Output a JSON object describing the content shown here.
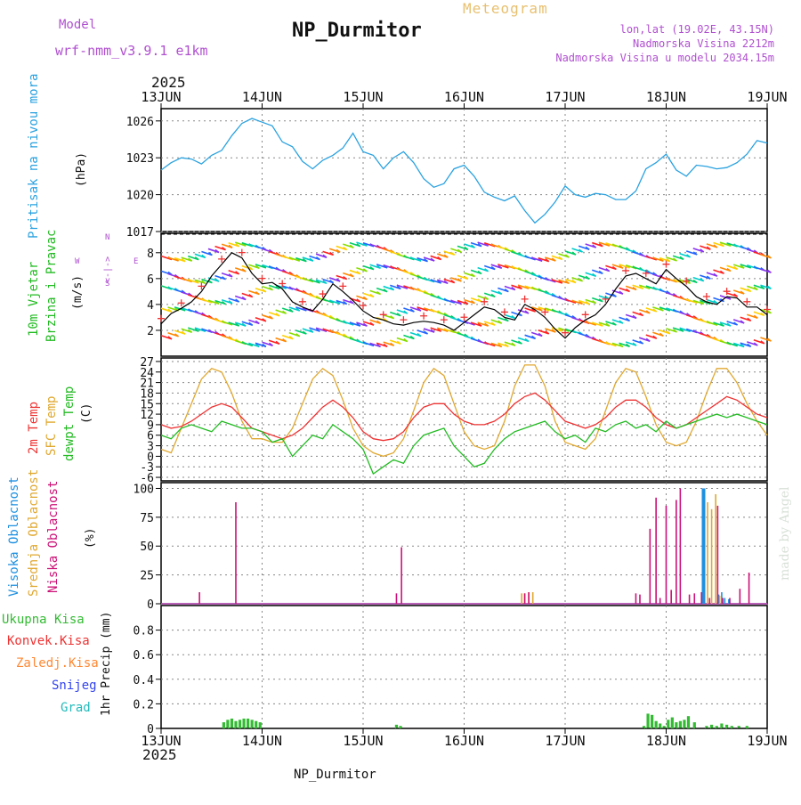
{
  "header": {
    "model_label": "Model",
    "model_name": "wrf-nmm_v3.9.1 e1km",
    "title": "NP_Durmitor",
    "subtitle": "Meteogram",
    "lonlat": "lon,lat (19.02E, 43.15N)",
    "altitude": "Nadmorska Visina 2212m",
    "model_altitude": "Nadmorska Visina u modelu 2034.15m",
    "year": "2025",
    "footer_label": "NP_Durmitor",
    "signature": "made by Angel"
  },
  "colors": {
    "pressure": "#2aa2e0",
    "temp2m": "#ee3333",
    "sfc": "#e0a830",
    "dew": "#22bb22",
    "cloud_high": "#1e90e0",
    "cloud_mid": "#e0a830",
    "cloud_low": "#cc1177",
    "precip_total": "#33bb33",
    "text_model": "#b050d0",
    "text_meteogram": "#e8c070",
    "rain_conv": "#ee3333",
    "rain_frozen": "#ff8833",
    "snow": "#3344ee",
    "hail": "#22bbbb"
  },
  "x_axis": {
    "ticks": [
      "13JUN",
      "14JUN",
      "15JUN",
      "16JUN",
      "17JUN",
      "18JUN",
      "19JUN"
    ]
  },
  "panels": {
    "pressure": {
      "label": "Pritisak na nivou mora",
      "unit": "(hPa)"
    },
    "wind": {
      "label1": "10m Vjetar",
      "label2": "Brzina i Pravac",
      "unit": "(m/s)",
      "compass_w": "W",
      "compass_e": "E",
      "compass_n": "N",
      "compass_s": "S",
      "compass_arrows": "<-|->"
    },
    "temp": {
      "label_2m": "2m Temp",
      "label_sfc": "SFC Temp",
      "label_dew": "dewpt Temp",
      "unit": "(C)"
    },
    "cloud": {
      "label_high": "Visoka Oblacnost",
      "label_mid": "Srednja Oblacnost",
      "label_low": "Niska Oblacnost",
      "unit": "(%)"
    },
    "precip": {
      "label_total": "Ukupna Kisa",
      "label_conv": "Konvek.Kisa",
      "label_frozen": "Zaledj.Kisa",
      "label_snow": "Snijeg",
      "label_hail": "Grad",
      "unit": "1hr Precip (mm)"
    }
  },
  "chart_data": [
    {
      "type": "line",
      "ylabel": "Pritisak na nivou mora (hPa)",
      "x_unit": "days since 13JUN 00Z",
      "ylim": [
        1017,
        1027
      ],
      "yticks": [
        1017,
        1020,
        1023,
        1026
      ],
      "series": [
        {
          "name": "pressure",
          "x": [
            0,
            0.1,
            0.2,
            0.3,
            0.4,
            0.5,
            0.6,
            0.7,
            0.8,
            0.9,
            1.0,
            1.1,
            1.2,
            1.3,
            1.4,
            1.5,
            1.6,
            1.7,
            1.8,
            1.9,
            2.0,
            2.1,
            2.2,
            2.3,
            2.4,
            2.5,
            2.6,
            2.7,
            2.8,
            2.9,
            3.0,
            3.1,
            3.2,
            3.3,
            3.4,
            3.5,
            3.6,
            3.7,
            3.8,
            3.9,
            4.0,
            4.1,
            4.2,
            4.3,
            4.4,
            4.5,
            4.6,
            4.7,
            4.8,
            4.9,
            5.0,
            5.1,
            5.2,
            5.3,
            5.4,
            5.5,
            5.6,
            5.7,
            5.8,
            5.9,
            6.0
          ],
          "values": [
            1022,
            1022.6,
            1023,
            1022.9,
            1022.5,
            1023.2,
            1023.6,
            1024.8,
            1025.8,
            1026.2,
            1025.9,
            1025.6,
            1024.3,
            1023.9,
            1022.7,
            1022.1,
            1022.8,
            1023.2,
            1023.8,
            1025.0,
            1023.5,
            1023.2,
            1022.1,
            1023.0,
            1023.5,
            1022.6,
            1021.3,
            1020.6,
            1020.9,
            1022.1,
            1022.4,
            1021.5,
            1020.2,
            1019.8,
            1019.5,
            1019.9,
            1018.7,
            1017.7,
            1018.4,
            1019.4,
            1020.7,
            1020.0,
            1019.8,
            1020.1,
            1020.0,
            1019.6,
            1019.6,
            1020.3,
            1022.1,
            1022.6,
            1023.3,
            1022.0,
            1021.5,
            1022.4,
            1022.3,
            1022.1,
            1022.2,
            1022.6,
            1023.3,
            1024.4,
            1024.2
          ]
        }
      ]
    },
    {
      "type": "line",
      "ylabel": "10m Vjetar Brzina i Pravac (m/s)",
      "x_unit": "days since 13JUN 00Z",
      "ylim": [
        0,
        9.5
      ],
      "yticks": [
        2,
        4,
        6,
        8
      ],
      "series": [
        {
          "name": "wind speed",
          "x": [
            0,
            0.1,
            0.2,
            0.3,
            0.4,
            0.5,
            0.6,
            0.7,
            0.8,
            0.9,
            1.0,
            1.1,
            1.2,
            1.3,
            1.4,
            1.5,
            1.6,
            1.7,
            1.8,
            1.9,
            2.0,
            2.1,
            2.2,
            2.3,
            2.4,
            2.5,
            2.6,
            2.7,
            2.8,
            2.9,
            3.0,
            3.1,
            3.2,
            3.3,
            3.4,
            3.5,
            3.6,
            3.7,
            3.8,
            3.9,
            4.0,
            4.1,
            4.2,
            4.3,
            4.4,
            4.5,
            4.6,
            4.7,
            4.8,
            4.9,
            5.0,
            5.1,
            5.2,
            5.3,
            5.4,
            5.5,
            5.6,
            5.7,
            5.8,
            5.9,
            6.0
          ],
          "values": [
            2.5,
            3.3,
            3.7,
            4.2,
            5.0,
            6.2,
            7.1,
            8.0,
            7.6,
            6.4,
            5.6,
            5.7,
            5.2,
            4.2,
            3.8,
            3.5,
            4.4,
            5.6,
            5.0,
            4.3,
            3.5,
            3.0,
            2.8,
            2.5,
            2.4,
            2.6,
            2.7,
            2.6,
            2.4,
            2.0,
            2.6,
            3.2,
            3.8,
            3.6,
            3.0,
            2.8,
            4.0,
            3.6,
            3.0,
            2.1,
            1.4,
            2.2,
            2.8,
            3.2,
            4.0,
            5.2,
            6.2,
            6.4,
            6.0,
            5.6,
            6.7,
            6.0,
            5.4,
            4.6,
            4.2,
            4.0,
            4.6,
            4.5,
            3.8,
            3.8,
            3.2
          ]
        }
      ]
    },
    {
      "type": "line",
      "ylabel": "Temperature (C)",
      "x_unit": "days since 13JUN 00Z",
      "ylim": [
        -7,
        28
      ],
      "yticks": [
        -6,
        -3,
        0,
        3,
        6,
        9,
        12,
        15,
        18,
        21,
        24,
        27
      ],
      "series": [
        {
          "name": "2m Temp",
          "x": [
            0,
            0.1,
            0.2,
            0.3,
            0.4,
            0.5,
            0.6,
            0.7,
            0.8,
            0.9,
            1.0,
            1.1,
            1.2,
            1.3,
            1.4,
            1.5,
            1.6,
            1.7,
            1.8,
            1.9,
            2.0,
            2.1,
            2.2,
            2.3,
            2.4,
            2.5,
            2.6,
            2.7,
            2.8,
            2.9,
            3.0,
            3.1,
            3.2,
            3.3,
            3.4,
            3.5,
            3.6,
            3.7,
            3.8,
            3.9,
            4.0,
            4.1,
            4.2,
            4.3,
            4.4,
            4.5,
            4.6,
            4.7,
            4.8,
            4.9,
            5.0,
            5.1,
            5.2,
            5.3,
            5.4,
            5.5,
            5.6,
            5.7,
            5.8,
            5.9,
            6.0
          ],
          "values": [
            9,
            8,
            8.5,
            10,
            12,
            14,
            15,
            14,
            11,
            8,
            7,
            6,
            5,
            6,
            8,
            11,
            14,
            16,
            14,
            11,
            7,
            5,
            4.5,
            5,
            7,
            11,
            14,
            15,
            15,
            12,
            10,
            9,
            9,
            10,
            12,
            15,
            17,
            18,
            16,
            13,
            10,
            9,
            8,
            9,
            11,
            14,
            16,
            16,
            14,
            11,
            9,
            8,
            9,
            11,
            13,
            15,
            17,
            16,
            14,
            12,
            11
          ]
        },
        {
          "name": "SFC Temp",
          "x": [
            0,
            0.1,
            0.2,
            0.3,
            0.4,
            0.5,
            0.6,
            0.7,
            0.8,
            0.9,
            1.0,
            1.1,
            1.2,
            1.3,
            1.4,
            1.5,
            1.6,
            1.7,
            1.8,
            1.9,
            2.0,
            2.1,
            2.2,
            2.3,
            2.4,
            2.5,
            2.6,
            2.7,
            2.8,
            2.9,
            3.0,
            3.1,
            3.2,
            3.3,
            3.4,
            3.5,
            3.6,
            3.7,
            3.8,
            3.9,
            4.0,
            4.1,
            4.2,
            4.3,
            4.4,
            4.5,
            4.6,
            4.7,
            4.8,
            4.9,
            5.0,
            5.1,
            5.2,
            5.3,
            5.4,
            5.5,
            5.6,
            5.7,
            5.8,
            5.9,
            6.0
          ],
          "values": [
            2,
            1,
            8,
            15,
            22,
            25,
            24,
            18,
            10,
            5,
            5,
            4,
            4,
            8,
            15,
            22,
            25,
            23,
            16,
            8,
            3,
            1,
            0,
            1,
            5,
            13,
            21,
            25,
            23,
            15,
            7,
            3,
            2,
            3,
            10,
            20,
            26,
            26,
            20,
            10,
            4,
            3,
            2,
            5,
            13,
            21,
            25,
            24,
            17,
            9,
            4,
            3,
            4,
            10,
            18,
            25,
            25,
            21,
            15,
            10,
            6
          ]
        },
        {
          "name": "dewpt Temp",
          "x": [
            0,
            0.1,
            0.2,
            0.3,
            0.4,
            0.5,
            0.6,
            0.7,
            0.8,
            0.9,
            1.0,
            1.1,
            1.2,
            1.3,
            1.4,
            1.5,
            1.6,
            1.7,
            1.8,
            1.9,
            2.0,
            2.1,
            2.2,
            2.3,
            2.4,
            2.5,
            2.6,
            2.7,
            2.8,
            2.9,
            3.0,
            3.1,
            3.2,
            3.3,
            3.4,
            3.5,
            3.6,
            3.7,
            3.8,
            3.9,
            4.0,
            4.1,
            4.2,
            4.3,
            4.4,
            4.5,
            4.6,
            4.7,
            4.8,
            4.9,
            5.0,
            5.1,
            5.2,
            5.3,
            5.4,
            5.5,
            5.6,
            5.7,
            5.8,
            5.9,
            6.0
          ],
          "values": [
            6,
            5,
            8,
            9,
            8,
            7,
            10,
            9,
            8,
            8,
            7,
            4,
            5,
            0,
            3,
            6,
            5,
            9,
            7,
            5,
            2,
            -5,
            -3,
            -1,
            -2,
            3,
            6,
            7,
            8,
            3,
            0,
            -3,
            -2,
            2,
            5,
            7,
            8,
            9,
            10,
            7,
            5,
            6,
            4,
            8,
            7,
            9,
            10,
            8,
            9,
            7,
            10,
            8,
            9,
            10,
            11,
            12,
            11,
            12,
            11,
            10,
            9
          ]
        }
      ]
    },
    {
      "type": "bar",
      "ylabel": "Oblacnost (%)",
      "x_unit": "days since 13JUN 00Z",
      "ylim": [
        0,
        105
      ],
      "yticks": [
        0,
        25,
        50,
        75,
        100
      ],
      "series": [
        {
          "name": "Visoka Oblacnost",
          "x": [
            5.37,
            5.52,
            5.55,
            5.58,
            5.62
          ],
          "values": [
            100,
            8,
            10,
            5,
            4
          ]
        },
        {
          "name": "Srednja Oblacnost",
          "x": [
            3.57,
            3.6,
            3.64,
            3.68,
            5.41,
            5.45,
            5.49,
            5.53
          ],
          "values": [
            9,
            9,
            10,
            10,
            88,
            82,
            95,
            7
          ]
        },
        {
          "name": "Niska Oblacnost",
          "x": [
            0.38,
            0.74,
            2.33,
            2.38,
            3.6,
            3.64,
            4.7,
            4.74,
            4.84,
            4.9,
            4.94,
            5.0,
            5.05,
            5.1,
            5.14,
            5.23,
            5.28,
            5.35,
            5.43,
            5.51,
            5.56,
            5.63,
            5.73,
            5.82
          ],
          "values": [
            10,
            88,
            9,
            49,
            9,
            10,
            9,
            8,
            65,
            92,
            5,
            85,
            12,
            90,
            100,
            8,
            9,
            10,
            5,
            85,
            5,
            5,
            13,
            27
          ]
        }
      ]
    },
    {
      "type": "bar",
      "ylabel": "1hr Precip (mm)",
      "x_unit": "days since 13JUN 00Z",
      "ylim": [
        0,
        1.0
      ],
      "yticks": [
        0,
        0.2,
        0.4,
        0.6,
        0.8
      ],
      "series": [
        {
          "name": "Ukupna Kisa",
          "x": [
            0.62,
            0.66,
            0.7,
            0.74,
            0.78,
            0.82,
            0.86,
            0.9,
            0.94,
            0.98,
            2.33,
            2.37,
            4.78,
            4.82,
            4.86,
            4.9,
            4.94,
            4.98,
            5.02,
            5.06,
            5.1,
            5.14,
            5.18,
            5.22,
            5.28,
            5.4,
            5.45,
            5.5,
            5.55,
            5.6,
            5.65,
            5.72,
            5.8
          ],
          "values": [
            0.05,
            0.07,
            0.08,
            0.06,
            0.07,
            0.08,
            0.08,
            0.07,
            0.06,
            0.05,
            0.03,
            0.02,
            0.02,
            0.12,
            0.11,
            0.06,
            0.04,
            0.02,
            0.07,
            0.09,
            0.05,
            0.06,
            0.07,
            0.1,
            0.05,
            0.02,
            0.03,
            0.02,
            0.04,
            0.03,
            0.02,
            0.02,
            0.02
          ]
        }
      ]
    }
  ]
}
